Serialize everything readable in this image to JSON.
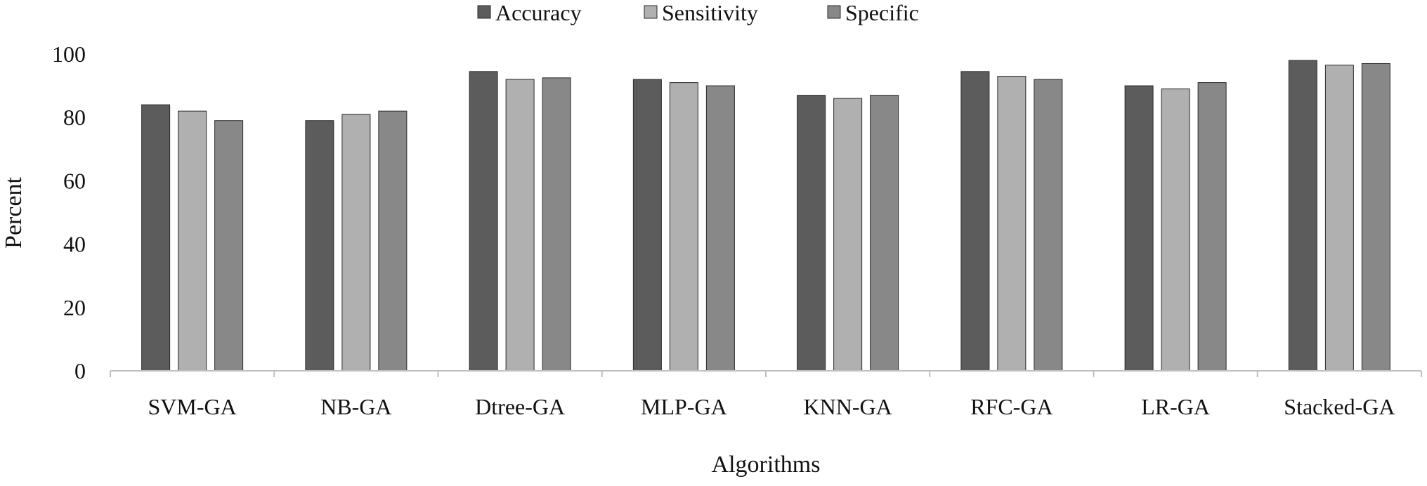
{
  "chart_data": {
    "type": "bar",
    "title": "",
    "xlabel": "Algorithms",
    "ylabel": "Percent",
    "ylim": [
      0,
      100
    ],
    "yticks": [
      0,
      20,
      40,
      60,
      80,
      100
    ],
    "grid": false,
    "legend_position": "top-center",
    "categories": [
      "SVM-GA",
      "NB-GA",
      "Dtree-GA",
      "MLP-GA",
      "KNN-GA",
      "RFC-GA",
      "LR-GA",
      "Stacked-GA"
    ],
    "series": [
      {
        "name": "Accuracy",
        "color": "#5c5c5c",
        "values": [
          84,
          79,
          94.5,
          92,
          87,
          94.5,
          90,
          98
        ]
      },
      {
        "name": "Sensitivity",
        "color": "#b0b0b0",
        "values": [
          82,
          81,
          92,
          91,
          86,
          93,
          89,
          96.5
        ]
      },
      {
        "name": "Specific",
        "color": "#888888",
        "values": [
          79,
          82,
          92.5,
          90,
          87,
          92,
          91,
          97
        ]
      }
    ]
  }
}
